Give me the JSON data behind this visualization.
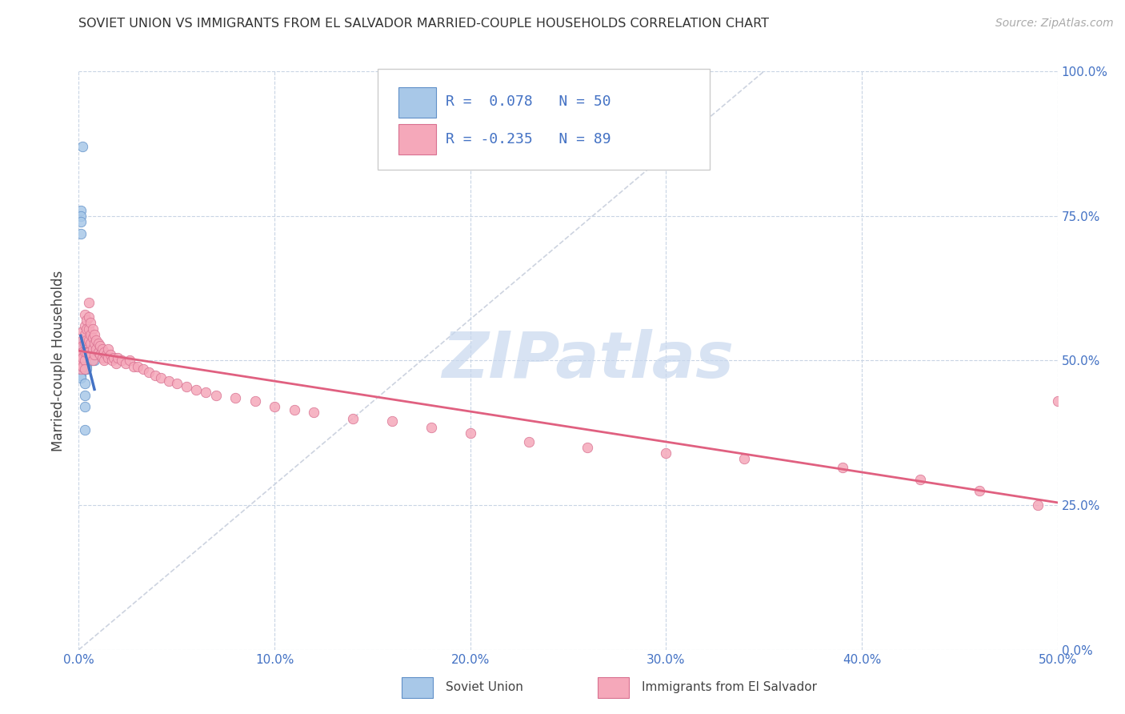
{
  "title": "SOVIET UNION VS IMMIGRANTS FROM EL SALVADOR MARRIED-COUPLE HOUSEHOLDS CORRELATION CHART",
  "source": "Source: ZipAtlas.com",
  "ylabel_label": "Married-couple Households",
  "legend_label1": "Soviet Union",
  "legend_label2": "Immigrants from El Salvador",
  "R1": 0.078,
  "N1": 50,
  "R2": -0.235,
  "N2": 89,
  "color_blue": "#a8c8e8",
  "color_pink": "#f5a8ba",
  "color_blue_edge": "#6090c8",
  "color_pink_edge": "#d87090",
  "color_line_blue": "#4472c4",
  "color_line_pink": "#e06080",
  "color_diagonal": "#c0c8d8",
  "watermark_color": "#c8d8ee",
  "xlim": [
    0.0,
    0.5
  ],
  "ylim": [
    0.0,
    1.0
  ],
  "xtick_vals": [
    0.0,
    0.1,
    0.2,
    0.3,
    0.4,
    0.5
  ],
  "xtick_labels": [
    "0.0%",
    "10.0%",
    "20.0%",
    "30.0%",
    "40.0%",
    "50.0%"
  ],
  "ytick_vals": [
    0.0,
    0.25,
    0.5,
    0.75,
    1.0
  ],
  "ytick_labels": [
    "0.0%",
    "25.0%",
    "50.0%",
    "75.0%",
    "100.0%"
  ],
  "soviet_x": [
    0.002,
    0.001,
    0.001,
    0.001,
    0.001,
    0.001,
    0.001,
    0.001,
    0.001,
    0.001,
    0.001,
    0.001,
    0.001,
    0.001,
    0.001,
    0.001,
    0.001,
    0.001,
    0.001,
    0.002,
    0.002,
    0.002,
    0.002,
    0.002,
    0.002,
    0.002,
    0.002,
    0.002,
    0.003,
    0.003,
    0.003,
    0.003,
    0.003,
    0.003,
    0.003,
    0.003,
    0.003,
    0.003,
    0.003,
    0.003,
    0.003,
    0.004,
    0.004,
    0.004,
    0.004,
    0.005,
    0.005,
    0.006,
    0.007,
    0.008
  ],
  "soviet_y": [
    0.87,
    0.76,
    0.75,
    0.74,
    0.72,
    0.53,
    0.52,
    0.52,
    0.515,
    0.51,
    0.505,
    0.5,
    0.5,
    0.5,
    0.495,
    0.49,
    0.485,
    0.475,
    0.47,
    0.53,
    0.52,
    0.515,
    0.51,
    0.505,
    0.5,
    0.5,
    0.495,
    0.49,
    0.52,
    0.515,
    0.51,
    0.505,
    0.5,
    0.5,
    0.495,
    0.49,
    0.485,
    0.46,
    0.44,
    0.42,
    0.38,
    0.515,
    0.51,
    0.49,
    0.485,
    0.52,
    0.5,
    0.51,
    0.5,
    0.5
  ],
  "salvador_x": [
    0.001,
    0.001,
    0.001,
    0.001,
    0.001,
    0.002,
    0.002,
    0.002,
    0.002,
    0.002,
    0.002,
    0.003,
    0.003,
    0.003,
    0.003,
    0.003,
    0.003,
    0.003,
    0.004,
    0.004,
    0.004,
    0.004,
    0.005,
    0.005,
    0.005,
    0.005,
    0.005,
    0.006,
    0.006,
    0.006,
    0.006,
    0.007,
    0.007,
    0.007,
    0.007,
    0.008,
    0.008,
    0.008,
    0.009,
    0.009,
    0.01,
    0.01,
    0.011,
    0.011,
    0.012,
    0.012,
    0.013,
    0.013,
    0.014,
    0.015,
    0.015,
    0.016,
    0.017,
    0.018,
    0.019,
    0.02,
    0.022,
    0.024,
    0.026,
    0.028,
    0.03,
    0.033,
    0.036,
    0.039,
    0.042,
    0.046,
    0.05,
    0.055,
    0.06,
    0.065,
    0.07,
    0.08,
    0.09,
    0.1,
    0.11,
    0.12,
    0.14,
    0.16,
    0.18,
    0.2,
    0.23,
    0.26,
    0.3,
    0.34,
    0.39,
    0.43,
    0.46,
    0.49,
    0.5
  ],
  "salvador_y": [
    0.51,
    0.505,
    0.5,
    0.495,
    0.485,
    0.55,
    0.535,
    0.525,
    0.515,
    0.505,
    0.49,
    0.58,
    0.56,
    0.545,
    0.53,
    0.515,
    0.5,
    0.485,
    0.57,
    0.555,
    0.535,
    0.515,
    0.6,
    0.575,
    0.555,
    0.535,
    0.515,
    0.565,
    0.545,
    0.53,
    0.51,
    0.555,
    0.54,
    0.52,
    0.5,
    0.545,
    0.53,
    0.51,
    0.535,
    0.52,
    0.53,
    0.515,
    0.525,
    0.51,
    0.52,
    0.505,
    0.515,
    0.5,
    0.51,
    0.52,
    0.505,
    0.51,
    0.5,
    0.505,
    0.495,
    0.505,
    0.5,
    0.495,
    0.5,
    0.49,
    0.49,
    0.485,
    0.48,
    0.475,
    0.47,
    0.465,
    0.46,
    0.455,
    0.45,
    0.445,
    0.44,
    0.435,
    0.43,
    0.42,
    0.415,
    0.41,
    0.4,
    0.395,
    0.385,
    0.375,
    0.36,
    0.35,
    0.34,
    0.33,
    0.315,
    0.295,
    0.275,
    0.25,
    0.43
  ]
}
